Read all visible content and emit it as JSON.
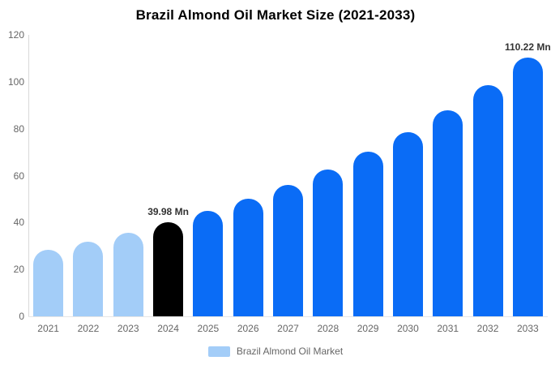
{
  "title": "Brazil Almond Oil Market Size (2021-2033)",
  "legend": {
    "label": "Brazil Almond Oil Market",
    "swatch_color": "#a3cdf8"
  },
  "colors": {
    "historical_bar": "#a3cdf8",
    "base_year_bar": "#000000",
    "forecast_bar": "#0a6cf6",
    "axis_line": "#d9d9d9",
    "tick_text": "#666666",
    "value_label_text": "#333333"
  },
  "chart_data": {
    "type": "bar",
    "title": "Brazil Almond Oil Market Size (2021-2033)",
    "categories": [
      "2021",
      "2022",
      "2023",
      "2024",
      "2025",
      "2026",
      "2027",
      "2028",
      "2029",
      "2030",
      "2031",
      "2032",
      "2033"
    ],
    "values": [
      28.5,
      31.9,
      35.7,
      39.98,
      44.8,
      50.1,
      56.1,
      62.7,
      70.2,
      78.6,
      88.0,
      98.5,
      110.22
    ],
    "series_name": "Brazil Almond Oil Market",
    "unit": "Mn",
    "bar_colors": [
      "#a3cdf8",
      "#a3cdf8",
      "#a3cdf8",
      "#000000",
      "#0a6cf6",
      "#0a6cf6",
      "#0a6cf6",
      "#0a6cf6",
      "#0a6cf6",
      "#0a6cf6",
      "#0a6cf6",
      "#0a6cf6",
      "#0a6cf6"
    ],
    "xlabel": "",
    "ylabel": "",
    "ylim": [
      0,
      120
    ],
    "yticks": [
      0,
      20,
      40,
      60,
      80,
      100,
      120
    ],
    "grid": false,
    "legend_position": "bottom",
    "annotations": [
      {
        "category": "2024",
        "text": "39.98 Mn"
      },
      {
        "category": "2033",
        "text": "110.22 Mn"
      }
    ]
  }
}
